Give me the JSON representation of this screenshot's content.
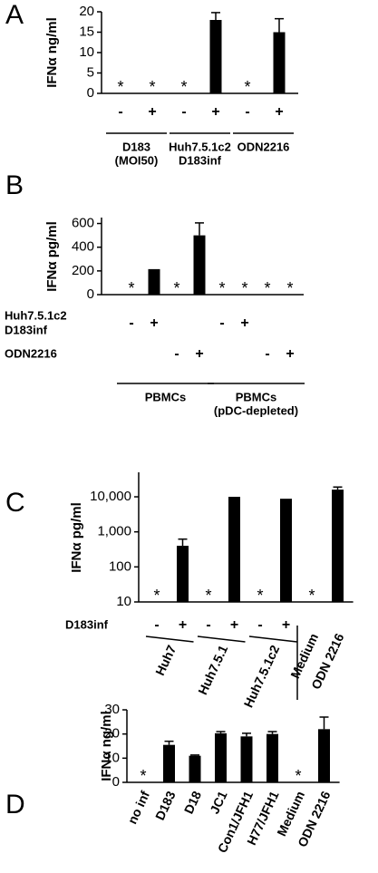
{
  "chart_data": [
    {
      "type": "bar",
      "label": "A",
      "y_label": "IFNα ng/ml",
      "ylim": [
        0,
        20
      ],
      "yticks": [
        0,
        5,
        10,
        15,
        20
      ],
      "color": "#000000",
      "values": [
        null,
        null,
        null,
        18,
        null,
        15
      ],
      "errors": [
        null,
        null,
        null,
        1.8,
        null,
        3.3
      ],
      "markers": [
        "*",
        "*",
        "*",
        null,
        "*",
        null
      ],
      "rows": [
        {
          "signs": [
            "-",
            "+",
            "-",
            "+",
            "-",
            "+"
          ]
        }
      ],
      "groups": [
        [
          "D183",
          "(MOI50)"
        ],
        [
          "Huh7.5.1c2",
          "D183inf"
        ],
        [
          "ODN2216"
        ]
      ]
    },
    {
      "type": "bar",
      "label": "B",
      "y_label": "IFNα pg/ml",
      "ylim": [
        0,
        650
      ],
      "yticks": [
        0,
        200,
        400,
        600
      ],
      "color": "#000000",
      "values": [
        null,
        215,
        null,
        500,
        null,
        null,
        null,
        null
      ],
      "errors": [
        null,
        null,
        null,
        105,
        null,
        null,
        null,
        null
      ],
      "markers": [
        "*",
        null,
        "*",
        null,
        "*",
        "*",
        "*",
        "*"
      ],
      "rows": [
        {
          "label": [
            "Huh7.5.1c2",
            "D183inf"
          ],
          "signs": [
            "-",
            "+",
            null,
            null,
            "-",
            "+",
            null,
            null
          ]
        },
        {
          "label": [
            "ODN2216"
          ],
          "signs": [
            null,
            null,
            "-",
            "+",
            null,
            null,
            "-",
            "+"
          ]
        }
      ],
      "groups": [
        [
          "PBMCs"
        ],
        [
          "PBMCs",
          "(pDC-depleted)"
        ]
      ]
    },
    {
      "type": "bar",
      "label": "C",
      "y_label": "IFNα pg/ml",
      "log_scale": true,
      "ylim": [
        10,
        50000
      ],
      "yticks": [
        10,
        100,
        {
          "value": 1000,
          "label": "1,000"
        },
        {
          "value": 10000,
          "label": "10,000"
        }
      ],
      "color": "#000000",
      "values": [
        null,
        400,
        null,
        10000,
        null,
        8800,
        null,
        16000
      ],
      "errors": [
        null,
        220,
        null,
        null,
        null,
        null,
        null,
        3000
      ],
      "markers": [
        "*",
        null,
        "*",
        null,
        "*",
        null,
        "*",
        null
      ],
      "rows": [
        {
          "label": [
            "D183inf"
          ],
          "signs": [
            "-",
            "+",
            "-",
            "+",
            "-",
            "+",
            null,
            null
          ]
        }
      ],
      "groups": [
        [
          "Huh7"
        ],
        [
          "Huh7.5.1"
        ],
        [
          "Huh7.5.1c2"
        ]
      ],
      "categories": [
        null,
        null,
        null,
        null,
        null,
        null,
        "Medium",
        "ODN 2216"
      ]
    },
    {
      "type": "bar",
      "label": "D",
      "y_label": "IFNα ng/ml",
      "ylim": [
        0,
        30
      ],
      "yticks": [
        0,
        10,
        20,
        30
      ],
      "color": "#000000",
      "values": [
        null,
        15.5,
        11,
        20.3,
        19,
        20,
        null,
        22
      ],
      "errors": [
        null,
        1.5,
        0.3,
        0.7,
        1.3,
        1,
        null,
        5
      ],
      "markers": [
        "*",
        null,
        null,
        null,
        null,
        null,
        "*",
        null
      ],
      "categories": [
        "no inf",
        "D183",
        "D18",
        "JC1",
        "Con1/JFH1",
        "H77/JFH1",
        "Medium",
        "ODN 2216"
      ]
    }
  ]
}
